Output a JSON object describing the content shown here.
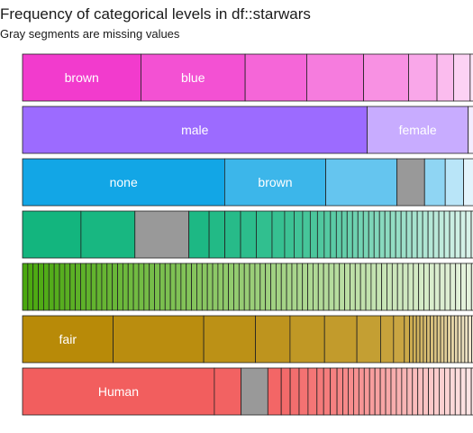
{
  "chart_data": {
    "type": "bar",
    "subtype": "stacked-proportion",
    "title": "Frequency of categorical levels in df::starwars",
    "subtitle": "Gray segments are missing values",
    "missing_color": "#999999",
    "series": [
      {
        "base_color": "#F23BCD",
        "labels": [
          "brown",
          "blue",
          "",
          "",
          "",
          "",
          "",
          "",
          ""
        ],
        "values": [
          0.25,
          0.22,
          0.13,
          0.12,
          0.095,
          0.06,
          0.035,
          0.035,
          0.025
        ],
        "missing": [
          false,
          false,
          false,
          false,
          false,
          false,
          false,
          false,
          false
        ]
      },
      {
        "base_color": "#9C6BFF",
        "labels": [
          "male",
          "female",
          ""
        ],
        "values": [
          0.75,
          0.22,
          0.03
        ],
        "missing": [
          false,
          false,
          false
        ]
      },
      {
        "base_color": "#12A6E6",
        "labels": [
          "none",
          "brown",
          "",
          "",
          "",
          "",
          ""
        ],
        "values": [
          0.44,
          0.22,
          0.155,
          0.06,
          0.045,
          0.04,
          0.04
        ],
        "missing": [
          false,
          false,
          false,
          true,
          false,
          false,
          false
        ]
      },
      {
        "base_color": "#13B57E",
        "values": [
          0.13,
          0.12,
          0.12,
          0.045,
          0.035,
          0.035,
          0.035,
          0.035,
          0.028,
          0.021,
          0.019,
          0.017,
          0.016,
          0.015,
          0.014,
          0.013,
          0.012,
          0.012,
          0.012,
          0.012,
          0.012,
          0.012,
          0.012,
          0.012,
          0.012,
          0.012,
          0.012,
          0.012,
          0.012,
          0.012,
          0.012,
          0.012,
          0.012,
          0.012,
          0.012,
          0.012,
          0.012,
          0.012,
          0.012,
          0.012,
          0.012,
          0.012,
          0.012
        ],
        "missing_index": 2
      },
      {
        "base_color": "#4AA80E",
        "values": [
          0.0115,
          0.0115,
          0.0115,
          0.0115,
          0.0115,
          0.0115,
          0.0115,
          0.0115,
          0.0115,
          0.0115,
          0.0115,
          0.0115,
          0.0115,
          0.0115,
          0.0115,
          0.0115,
          0.0115,
          0.0115,
          0.0115,
          0.0115,
          0.0115,
          0.0115,
          0.0115,
          0.0115,
          0.0115,
          0.0115,
          0.0115,
          0.0115,
          0.0115,
          0.0115,
          0.0115,
          0.0115,
          0.0115,
          0.0115,
          0.0115,
          0.0115,
          0.0115,
          0.0115,
          0.0115,
          0.0115,
          0.0115,
          0.0115,
          0.0115,
          0.0115,
          0.0115,
          0.0115,
          0.0115,
          0.0115,
          0.0115,
          0.0115,
          0.0115,
          0.0115,
          0.0115,
          0.0115,
          0.0115,
          0.0115,
          0.0115,
          0.0115,
          0.0115,
          0.0115,
          0.0115,
          0.0115,
          0.0115,
          0.0115,
          0.0115,
          0.0115,
          0.0115,
          0.0115,
          0.0115,
          0.0115,
          0.0115,
          0.0115,
          0.0115,
          0.0115,
          0.0115,
          0.0115,
          0.0115,
          0.0115,
          0.0115,
          0.0115,
          0.0115,
          0.0115,
          0.0115,
          0.0115,
          0.0115,
          0.0115,
          0.0115
        ]
      },
      {
        "base_color": "#B88A08",
        "labels": [
          "fair",
          "",
          "",
          "",
          "",
          "",
          "",
          "",
          "",
          "",
          "",
          "",
          "",
          "",
          "",
          "",
          "",
          "",
          "",
          "",
          "",
          "",
          "",
          "",
          "",
          "",
          "",
          "",
          "",
          "",
          ""
        ],
        "values": [
          0.21,
          0.21,
          0.12,
          0.08,
          0.08,
          0.075,
          0.055,
          0.03,
          0.025,
          0.012,
          0.008,
          0.008,
          0.008,
          0.008,
          0.008,
          0.008,
          0.008,
          0.008,
          0.008,
          0.008,
          0.008,
          0.008,
          0.008,
          0.008,
          0.008,
          0.008,
          0.008,
          0.008,
          0.008,
          0.008,
          0.008
        ]
      },
      {
        "base_color": "#F25E5E",
        "labels": [
          "Human"
        ],
        "values": [
          0.43,
          0.06,
          0.06,
          0.03,
          0.02,
          0.02,
          0.02,
          0.02,
          0.015,
          0.015,
          0.015,
          0.013,
          0.012,
          0.012,
          0.012,
          0.012,
          0.012,
          0.012,
          0.012,
          0.012,
          0.012,
          0.012,
          0.012,
          0.012,
          0.012,
          0.012,
          0.012,
          0.012,
          0.012,
          0.012,
          0.012,
          0.012,
          0.012,
          0.012,
          0.012,
          0.012,
          0.012,
          0.012
        ],
        "missing_index": 2
      }
    ]
  }
}
